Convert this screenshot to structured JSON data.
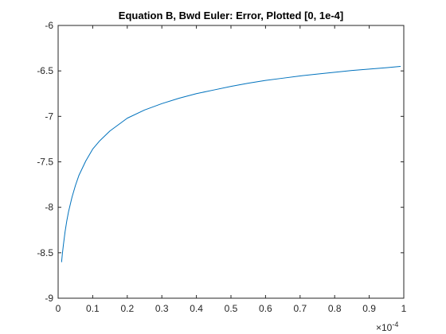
{
  "chart_data": {
    "type": "line",
    "title": "Equation B, Bwd Euler: Error, Plotted [0, 1e-4]",
    "xlabel": "",
    "ylabel": "",
    "xlim": [
      0,
      1
    ],
    "ylim": [
      -9,
      -6
    ],
    "x_ticks": [
      0,
      0.1,
      0.2,
      0.3,
      0.4,
      0.5,
      0.6,
      0.7,
      0.8,
      0.9,
      1
    ],
    "x_tick_labels": [
      "0",
      "0.1",
      "0.2",
      "0.3",
      "0.4",
      "0.5",
      "0.6",
      "0.7",
      "0.8",
      "0.9",
      "1"
    ],
    "y_ticks": [
      -6,
      -6.5,
      -7,
      -7.5,
      -8,
      -8.5,
      -9
    ],
    "y_tick_labels": [
      "-6",
      "-6.5",
      "-7",
      "-7.5",
      "-8",
      "-8.5",
      "-9"
    ],
    "x_multiplier": {
      "base": "×10",
      "exponent": "-4"
    },
    "grid": false,
    "series": [
      {
        "name": "error",
        "color": "#0072bd",
        "x": [
          0.01,
          0.012,
          0.015,
          0.02,
          0.025,
          0.03,
          0.04,
          0.05,
          0.06,
          0.08,
          0.1,
          0.12,
          0.15,
          0.2,
          0.25,
          0.3,
          0.35,
          0.4,
          0.45,
          0.5,
          0.55,
          0.6,
          0.65,
          0.7,
          0.75,
          0.8,
          0.85,
          0.9,
          0.95,
          0.99
        ],
        "y": [
          -8.6,
          -8.52,
          -8.42,
          -8.27,
          -8.15,
          -8.05,
          -7.89,
          -7.76,
          -7.65,
          -7.49,
          -7.36,
          -7.27,
          -7.16,
          -7.02,
          -6.93,
          -6.86,
          -6.8,
          -6.75,
          -6.71,
          -6.67,
          -6.635,
          -6.605,
          -6.58,
          -6.555,
          -6.535,
          -6.515,
          -6.495,
          -6.48,
          -6.465,
          -6.45
        ]
      }
    ]
  }
}
